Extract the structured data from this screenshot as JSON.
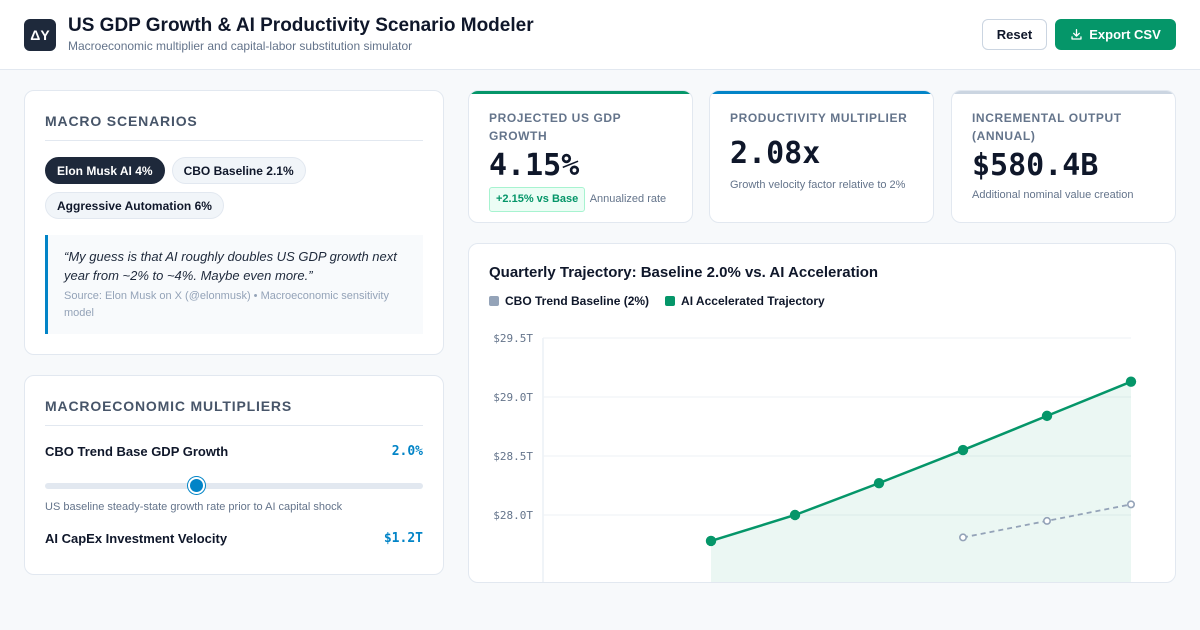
{
  "header": {
    "logo": "ΔY",
    "title": "US GDP Growth & AI Productivity Scenario Modeler",
    "subtitle": "Macroeconomic multiplier and capital-labor substitution simulator",
    "reset_label": "Reset",
    "export_label": "Export CSV"
  },
  "scenarios": {
    "title": "Macro Scenarios",
    "pills": [
      {
        "label": "Elon Musk AI 4%",
        "active": true
      },
      {
        "label": "CBO Baseline 2.1%",
        "active": false
      },
      {
        "label": "Aggressive Automation 6%",
        "active": false
      }
    ],
    "quote": "“My guess is that AI roughly doubles US GDP growth next year from ~2% to ~4%. Maybe even more.”",
    "source": "Source: Elon Musk on X (@elonmusk) • Macroeconomic sensitivity model"
  },
  "multipliers": {
    "title": "Macroeconomic Multipliers",
    "items": [
      {
        "label": "CBO Trend Base GDP Growth",
        "value": "2.0%",
        "level": 0.4,
        "description": "US baseline steady-state growth rate prior to AI capital shock"
      },
      {
        "label": "AI CapEx Investment Velocity",
        "value": "$1.2T"
      }
    ]
  },
  "kpis": [
    {
      "label": "Projected US GDP Growth",
      "value": "4.15%",
      "badge": "+2.15% vs Base",
      "note": "Annualized rate",
      "accent": "#059669"
    },
    {
      "label": "Productivity Multiplier",
      "value": "2.08x",
      "note": "Growth velocity factor relative to 2%",
      "accent": "#0284c7"
    },
    {
      "label": "Incremental Output (Annual)",
      "value": "$580.4B",
      "note": "Additional nominal value creation",
      "accent": "#cbd5e1"
    }
  ],
  "chart": {
    "title": "Quarterly Trajectory: Baseline 2.0% vs. AI Acceleration",
    "legend": [
      "CBO Trend Baseline (2%)",
      "AI Accelerated Trajectory"
    ]
  },
  "chart_data": {
    "type": "line",
    "title": "Quarterly Trajectory: Baseline 2.0% vs. AI Acceleration",
    "x": [
      0,
      1,
      2,
      3,
      4,
      5,
      6,
      7
    ],
    "ylim": [
      27.5,
      29.5
    ],
    "yticks": [
      "$29.5T",
      "$29.0T",
      "$28.5T",
      "$28.0T"
    ],
    "ytick_values": [
      29.5,
      29.0,
      28.5,
      28.0
    ],
    "series": [
      {
        "name": "CBO Trend Baseline (2%)",
        "color": "#94a3b8",
        "style": "dashed",
        "values": [
          null,
          null,
          null,
          null,
          null,
          27.81,
          27.95,
          28.09
        ]
      },
      {
        "name": "AI Accelerated Trajectory",
        "color": "#059669",
        "style": "solid",
        "values": [
          null,
          null,
          27.78,
          28.0,
          28.27,
          28.55,
          28.84,
          29.13
        ]
      }
    ],
    "grid": true,
    "legend_position": "top-left"
  }
}
